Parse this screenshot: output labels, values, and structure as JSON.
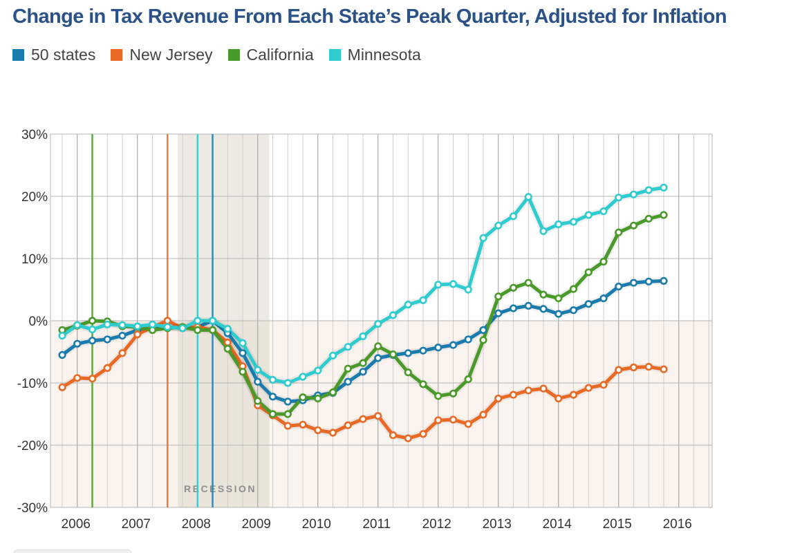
{
  "title": "Change in Tax Revenue From Each State’s Peak Quarter, Adjusted for Inflation",
  "legend": [
    {
      "label": "50 states",
      "color": "#1a7bad"
    },
    {
      "label": "New Jersey",
      "color": "#e86a24"
    },
    {
      "label": "California",
      "color": "#4a9a2a"
    },
    {
      "label": "Minnesota",
      "color": "#2ecccf"
    }
  ],
  "chart_data": {
    "type": "line",
    "ylim": [
      -30,
      30
    ],
    "yticks": [
      "30%",
      "20%",
      "10%",
      "0%",
      "-10%",
      "-20%",
      "-30%"
    ],
    "ytick_values": [
      30,
      20,
      10,
      0,
      -10,
      -20,
      -30
    ],
    "xticks": [
      "2006",
      "2007",
      "2008",
      "2009",
      "2010",
      "2011",
      "2012",
      "2013",
      "2014",
      "2015",
      "2016"
    ],
    "x_start_quarter": "2005 Q4",
    "annotation": "RECESSION",
    "recession_quarters": [
      8,
      14
    ],
    "peak_markers": [
      {
        "series": "California",
        "quarter": 2
      },
      {
        "series": "New Jersey",
        "quarter": 7
      },
      {
        "series": "Minnesota",
        "quarter": 9
      },
      {
        "series": "50 states",
        "quarter": 10
      }
    ],
    "series": [
      {
        "name": "50 states",
        "color": "#1a7bad",
        "values": [
          -5.5,
          -3.7,
          -3.2,
          -3.0,
          -2.4,
          -1.5,
          -1.2,
          -1.0,
          -1.2,
          -1.0,
          0.0,
          -2.0,
          -5.2,
          -9.8,
          -12.2,
          -13.0,
          -12.8,
          -12.0,
          -11.6,
          -9.8,
          -8.2,
          -6.0,
          -5.5,
          -5.2,
          -4.8,
          -4.3,
          -3.9,
          -3.0,
          -1.5,
          1.2,
          2.0,
          2.4,
          1.9,
          1.1,
          1.7,
          2.7,
          3.6,
          5.5,
          6.1,
          6.3,
          6.4
        ]
      },
      {
        "name": "New Jersey",
        "color": "#e86a24",
        "values": [
          -10.7,
          -9.2,
          -9.3,
          -7.6,
          -5.2,
          -2.2,
          -1.0,
          0.0,
          -1.2,
          -1.0,
          -1.5,
          -3.5,
          -7.3,
          -13.6,
          -15.2,
          -16.9,
          -16.7,
          -17.6,
          -18.0,
          -16.8,
          -15.8,
          -15.3,
          -18.4,
          -18.9,
          -18.2,
          -16.0,
          -15.9,
          -16.6,
          -15.1,
          -12.5,
          -11.9,
          -11.2,
          -10.9,
          -12.5,
          -11.9,
          -10.8,
          -10.3,
          -7.9,
          -7.5,
          -7.4,
          -7.8
        ]
      },
      {
        "name": "California",
        "color": "#4a9a2a",
        "values": [
          -1.5,
          -0.8,
          0.0,
          -0.1,
          -0.9,
          -1.0,
          -1.5,
          -1.2,
          -1.0,
          -1.5,
          -1.5,
          -4.5,
          -8.2,
          -12.9,
          -15.0,
          -15.0,
          -12.3,
          -12.5,
          -11.5,
          -7.7,
          -6.8,
          -4.1,
          -5.4,
          -8.3,
          -10.2,
          -12.1,
          -11.7,
          -9.4,
          -3.1,
          3.9,
          5.3,
          6.1,
          4.2,
          3.6,
          5.1,
          7.8,
          9.5,
          14.2,
          15.3,
          16.4,
          17.0
        ]
      },
      {
        "name": "Minnesota",
        "color": "#2ecccf",
        "values": [
          -2.4,
          -0.7,
          -1.4,
          -0.6,
          -0.7,
          -0.9,
          -0.6,
          -1.0,
          -1.2,
          0.0,
          0.0,
          -1.3,
          -3.6,
          -7.9,
          -9.5,
          -10.0,
          -9.0,
          -8.0,
          -5.6,
          -4.2,
          -2.5,
          -0.5,
          0.9,
          2.6,
          3.3,
          5.8,
          5.9,
          5.0,
          13.3,
          15.3,
          16.8,
          19.9,
          14.4,
          15.5,
          15.9,
          17.0,
          17.6,
          19.8,
          20.3,
          21.0,
          21.4
        ]
      }
    ]
  },
  "footer_tab": ""
}
